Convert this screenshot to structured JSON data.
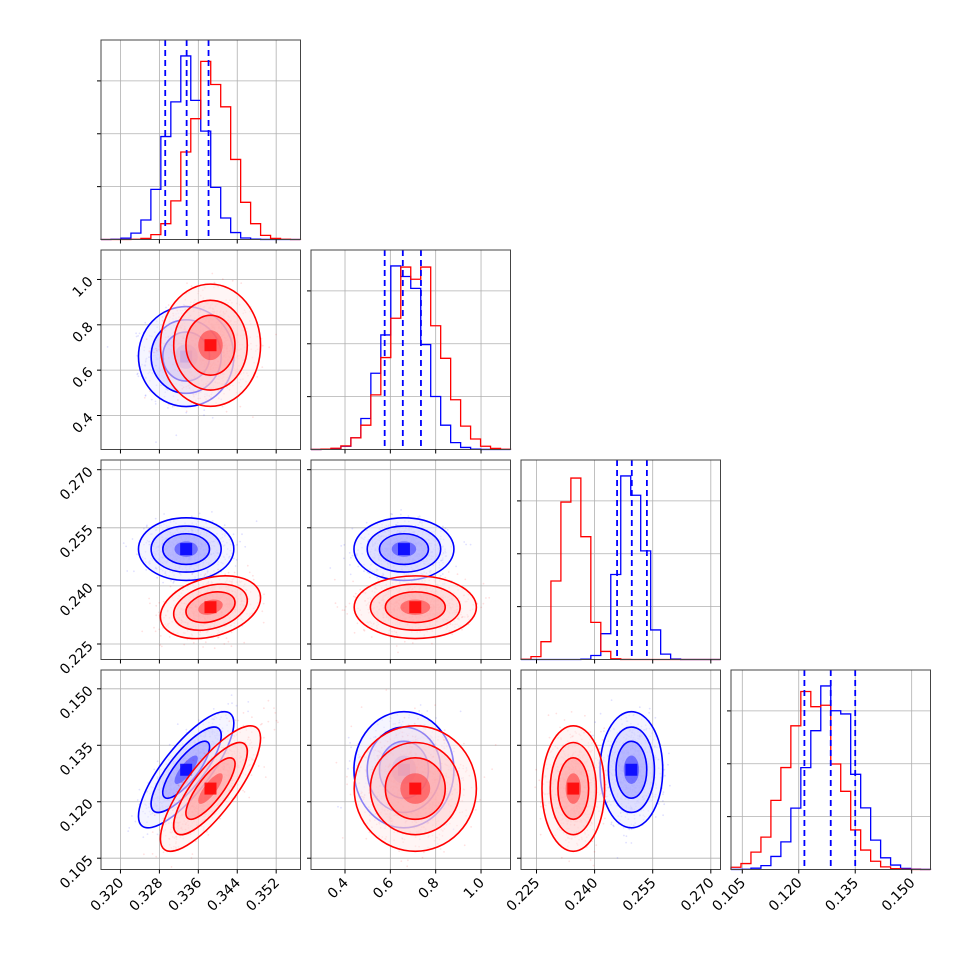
{
  "chart_data": {
    "type": "corner",
    "grid": true,
    "parameters": [
      {
        "ticks": [
          "0.320",
          "0.328",
          "0.336",
          "0.344",
          "0.352"
        ],
        "range": [
          0.316,
          0.357
        ]
      },
      {
        "ticks": [
          "0.4",
          "0.6",
          "0.8",
          "1.0"
        ],
        "range": [
          0.25,
          1.13
        ]
      },
      {
        "ticks": [
          "0.225",
          "0.240",
          "0.255",
          "0.270"
        ],
        "range": [
          0.221,
          0.2725
        ]
      },
      {
        "ticks": [
          "0.105",
          "0.120",
          "0.135",
          "0.150"
        ],
        "range": [
          0.102,
          0.155
        ]
      }
    ],
    "series": [
      {
        "color": "#0000ff",
        "mean": [
          0.3335,
          0.66,
          0.2495,
          0.1285
        ],
        "std": [
          0.004,
          0.09,
          0.0033,
          0.0063
        ],
        "corr": [
          [
            1,
            0,
            0,
            0.8
          ],
          [
            0,
            1,
            0,
            0
          ],
          [
            0,
            0,
            1,
            0
          ],
          [
            0.8,
            0,
            0,
            1
          ]
        ],
        "quantile_lines": [
          [
            0.3292,
            0.3336,
            0.3381
          ],
          [
            0.575,
            0.655,
            0.735
          ],
          [
            0.2458,
            0.2496,
            0.2535
          ],
          [
            0.1215,
            0.1285,
            0.135
          ]
        ]
      },
      {
        "color": "#ff0000",
        "mean": [
          0.3385,
          0.71,
          0.2345,
          0.1235
        ],
        "std": [
          0.0042,
          0.11,
          0.0033,
          0.0068
        ],
        "corr": [
          [
            1,
            0,
            0.3,
            0.8
          ],
          [
            0,
            1,
            0,
            0
          ],
          [
            0.3,
            0,
            1,
            0
          ],
          [
            0.8,
            0,
            0,
            1
          ]
        ],
        "quantile_lines": []
      }
    ]
  }
}
